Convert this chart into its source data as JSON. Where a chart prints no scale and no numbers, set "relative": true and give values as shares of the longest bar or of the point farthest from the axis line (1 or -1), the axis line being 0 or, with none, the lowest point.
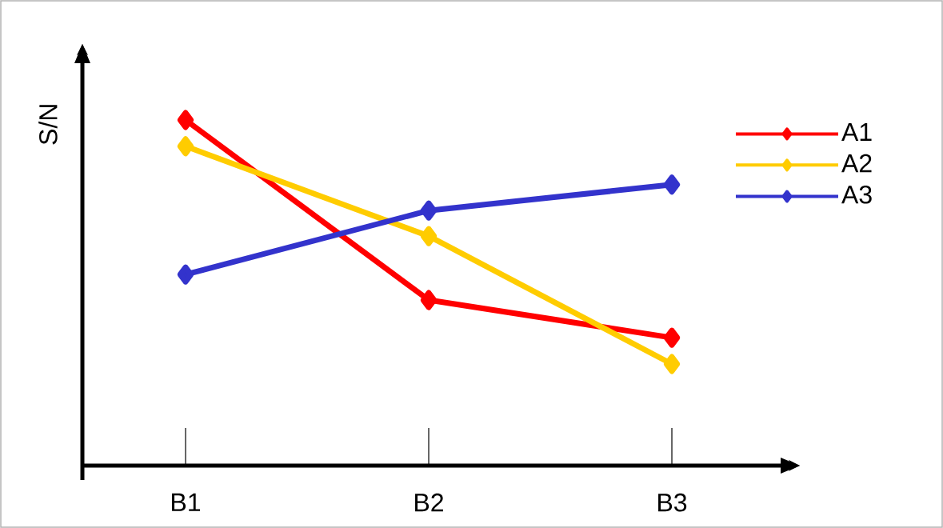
{
  "chart_data": {
    "type": "line",
    "relative": true,
    "ylabel": "S/N",
    "categories": [
      "B1",
      "B2",
      "B3"
    ],
    "series": [
      {
        "name": "A1",
        "color": "#ff0000",
        "values": [
          1,
          0.479,
          0.37
        ]
      },
      {
        "name": "A2",
        "color": "#ffcc00",
        "values": [
          0.924,
          0.664,
          0.294
        ]
      },
      {
        "name": "A3",
        "color": "#3333cc",
        "values": [
          0.553,
          0.738,
          0.813
        ]
      }
    ],
    "marker": "diamond",
    "line_style": "solid",
    "legend": "top right"
  }
}
